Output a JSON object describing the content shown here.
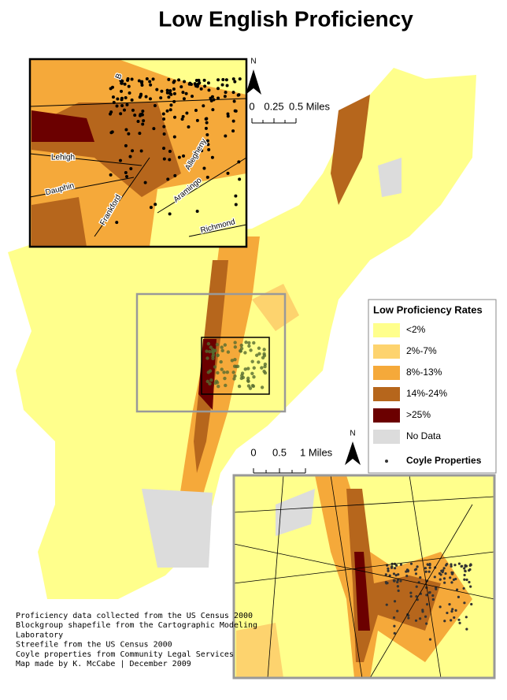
{
  "title": "Low English Proficiency",
  "inset_streets": [
    "B",
    "Lehigh",
    "Dauphin",
    "Frankford",
    "Allegheny",
    "Aramingo",
    "Richmond"
  ],
  "north_arrows": [
    "N",
    "N"
  ],
  "scale_bars": [
    {
      "labels": [
        "0",
        "0.25",
        "0.5 Miles"
      ]
    },
    {
      "labels": [
        "0",
        "0.5",
        "1 Miles"
      ]
    }
  ],
  "legend": {
    "title": "Low Proficiency Rates",
    "items": [
      {
        "label": "<2%",
        "color": "#ffff8c"
      },
      {
        "label": "2%-7%",
        "color": "#fdd36e"
      },
      {
        "label": "8%-13%",
        "color": "#f5a93a"
      },
      {
        "label": "14%-24%",
        "color": "#b6661c"
      },
      {
        "label": ">25%",
        "color": "#6b0000"
      },
      {
        "label": "No Data",
        "color": "#dcdcdc"
      }
    ],
    "point_label": "Coyle Properties"
  },
  "credits": [
    "Proficiency data collected from the US Census 2000",
    "Blockgroup shapefile from the Cartographic Modeling",
    "Laboratory",
    "Streefile from the US Census 2000",
    "Coyle properties from  Community Legal Services",
    "Map made by K. McCabe | December 2009"
  ]
}
